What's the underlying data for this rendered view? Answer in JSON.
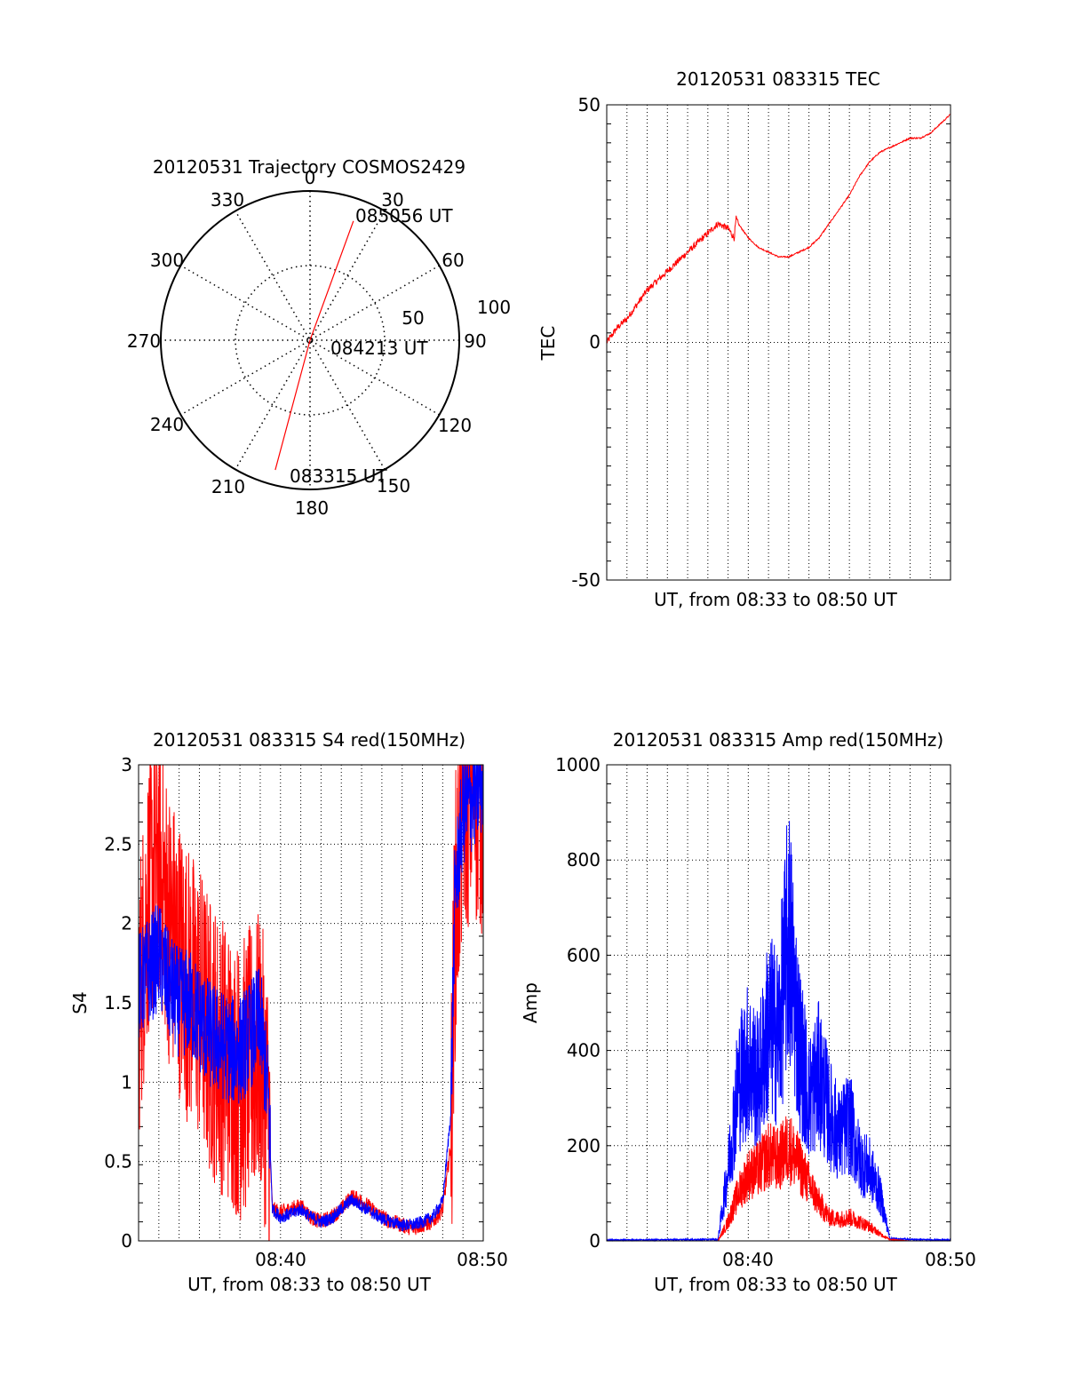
{
  "chart_data": [
    {
      "type": "polar",
      "title": "20120531 Trajectory COSMOS2429",
      "azimuth_labels": [
        "0",
        "30",
        "60",
        "90",
        "120",
        "150",
        "180",
        "210",
        "240",
        "270",
        "300",
        "330"
      ],
      "ring_labels": [
        "50",
        "100"
      ],
      "grid": true,
      "series": [
        {
          "color": "#ff0000",
          "points": [
            {
              "time": "083315 UT",
              "azimuth_deg": 195,
              "radius": 90
            },
            {
              "time": "084213 UT",
              "azimuth_deg": 0,
              "radius": 0
            },
            {
              "time": "085056 UT",
              "azimuth_deg": 20,
              "radius": 85
            }
          ]
        }
      ],
      "annotations": [
        "085056 UT",
        "084213 UT",
        "083315 UT"
      ]
    },
    {
      "type": "line",
      "title": "20120531 083315 TEC",
      "xlabel": "UT, from 08:33 to 08:50 UT",
      "ylabel": "TEC",
      "ylim": [
        -50,
        50
      ],
      "yticks": [
        "50",
        "0",
        "-50"
      ],
      "grid": true,
      "series": [
        {
          "color": "#ff0000",
          "x_min": [
            0,
            0.5,
            1,
            1.5,
            2,
            2.5,
            3,
            3.5,
            4,
            4.5,
            5,
            5.5,
            6,
            6.3,
            6.4,
            6.5,
            7,
            7.5,
            8,
            8.5,
            9,
            9.5,
            10,
            10.5,
            11,
            11.5,
            12,
            12.5,
            13,
            13.5,
            14,
            14.5,
            15,
            15.5,
            16,
            16.5,
            17
          ],
          "values": [
            0,
            3,
            5,
            8,
            11,
            13,
            15,
            17,
            19,
            21,
            23,
            25,
            24,
            22,
            26,
            25,
            22,
            20,
            19,
            18,
            18,
            19,
            20,
            22,
            25,
            28,
            31,
            35,
            38,
            40,
            41,
            42,
            43,
            43,
            44,
            46,
            48
          ]
        }
      ]
    },
    {
      "type": "line",
      "title": "20120531 083315 S4 red(150MHz)",
      "xlabel": "UT, from 08:33 to 08:50 UT",
      "ylabel": "S4",
      "ylim": [
        0,
        3
      ],
      "yticks": [
        "0",
        "0.5",
        "1",
        "1.5",
        "2",
        "2.5",
        "3"
      ],
      "xticks": [
        "08:40",
        "08:50"
      ],
      "grid": true,
      "series": [
        {
          "color": "#ff0000",
          "x_min": [
            0,
            0.5,
            1,
            1.5,
            2,
            2.5,
            3,
            3.5,
            4,
            4.5,
            5,
            5.5,
            6,
            6.4,
            6.6,
            7,
            7.5,
            8,
            8.5,
            9,
            9.5,
            10,
            10.5,
            11,
            11.5,
            12,
            12.5,
            13,
            13.5,
            14,
            14.5,
            15,
            15.4,
            15.6,
            16,
            16.5,
            17
          ],
          "values": [
            1.5,
            2.2,
            2.4,
            2.0,
            1.8,
            1.6,
            1.5,
            1.3,
            1.2,
            1.1,
            1.0,
            1.1,
            1.2,
            0.8,
            0.2,
            0.18,
            0.2,
            0.22,
            0.15,
            0.12,
            0.15,
            0.2,
            0.28,
            0.25,
            0.2,
            0.15,
            0.12,
            0.1,
            0.08,
            0.1,
            0.12,
            0.2,
            0.6,
            2.0,
            2.8,
            2.9,
            2.8
          ]
        },
        {
          "color": "#0000ff",
          "x_min": [
            0,
            0.5,
            1,
            1.5,
            2,
            2.5,
            3,
            3.5,
            4,
            4.5,
            5,
            5.5,
            6,
            6.4,
            6.6,
            7,
            7.5,
            8,
            8.5,
            9,
            9.5,
            10,
            10.5,
            11,
            11.5,
            12,
            12.5,
            13,
            13.5,
            14,
            14.5,
            15,
            15.4,
            15.6,
            16,
            16.5,
            17
          ],
          "values": [
            1.6,
            1.7,
            1.8,
            1.6,
            1.5,
            1.5,
            1.4,
            1.3,
            1.25,
            1.2,
            1.2,
            1.3,
            1.4,
            0.9,
            0.2,
            0.15,
            0.17,
            0.2,
            0.15,
            0.12,
            0.14,
            0.2,
            0.26,
            0.22,
            0.18,
            0.14,
            0.12,
            0.1,
            0.1,
            0.12,
            0.15,
            0.25,
            0.8,
            2.2,
            2.7,
            2.8,
            2.9
          ]
        }
      ]
    },
    {
      "type": "line",
      "title": "20120531 083315 Amp red(150MHz)",
      "xlabel": "UT, from 08:33 to 08:50 UT",
      "ylabel": "Amp",
      "ylim": [
        0,
        1000
      ],
      "yticks": [
        "0",
        "200",
        "400",
        "600",
        "800",
        "1000"
      ],
      "xticks": [
        "08:40",
        "08:50"
      ],
      "grid": true,
      "series": [
        {
          "color": "#0000ff",
          "x_min": [
            0,
            5.5,
            6,
            6.5,
            7,
            7.5,
            8,
            8.5,
            9,
            9.5,
            10,
            10.5,
            11,
            11.5,
            12,
            12.5,
            13,
            13.5,
            14,
            15,
            17
          ],
          "values": [
            2,
            3,
            150,
            330,
            380,
            330,
            450,
            430,
            650,
            420,
            300,
            350,
            270,
            220,
            250,
            170,
            150,
            100,
            5,
            3,
            2
          ]
        },
        {
          "color": "#ff0000",
          "x_min": [
            0,
            5.5,
            6,
            6.5,
            7,
            7.5,
            8,
            8.5,
            9,
            9.5,
            10,
            10.5,
            11,
            11.5,
            12,
            12.5,
            13,
            13.5,
            14,
            15,
            17
          ],
          "values": [
            0,
            0,
            40,
            100,
            140,
            150,
            180,
            170,
            200,
            160,
            120,
            80,
            50,
            45,
            50,
            40,
            30,
            15,
            3,
            0,
            0
          ]
        }
      ]
    }
  ]
}
